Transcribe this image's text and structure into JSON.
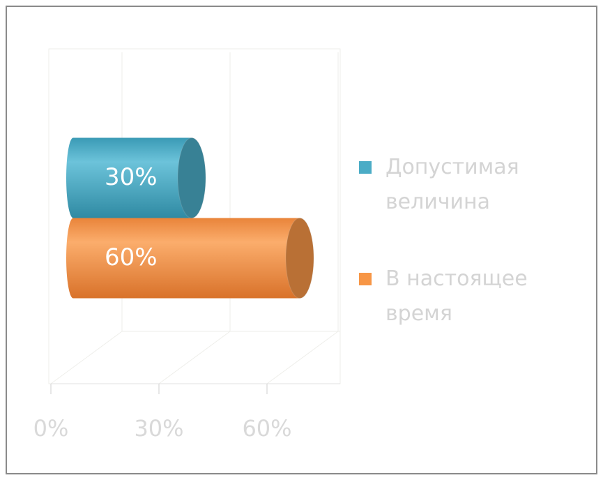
{
  "chart_data": {
    "type": "bar3d",
    "orientation": "horizontal",
    "categories": [
      null
    ],
    "series": [
      {
        "name": "Допустимая величина",
        "color": "#4bacc6",
        "values": [
          30
        ],
        "value_labels": [
          "30%"
        ]
      },
      {
        "name": "В настоящее время",
        "color": "#f79646",
        "values": [
          60
        ],
        "value_labels": [
          "60%"
        ]
      }
    ],
    "xlim": [
      0,
      60
    ],
    "xticks": [
      {
        "value": 0,
        "label": "0%"
      },
      {
        "value": 30,
        "label": "30%"
      },
      {
        "value": 60,
        "label": "60%"
      }
    ],
    "grid": true,
    "legend": "right"
  }
}
